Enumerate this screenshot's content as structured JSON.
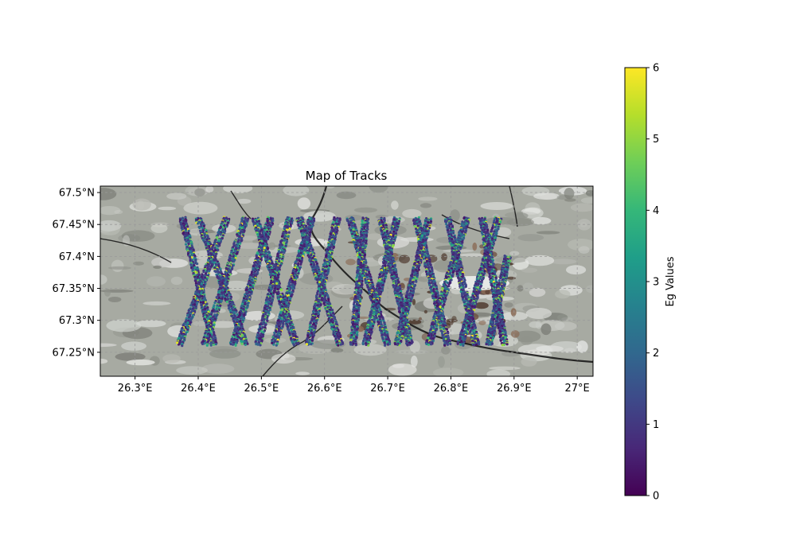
{
  "chart_data": {
    "type": "scatter",
    "title": "Map of Tracks",
    "xlim": [
      26.245,
      27.025
    ],
    "ylim": [
      67.2125,
      67.51
    ],
    "x_ticks": [
      {
        "value": 26.3,
        "label": "26.3°E"
      },
      {
        "value": 26.4,
        "label": "26.4°E"
      },
      {
        "value": 26.5,
        "label": "26.5°E"
      },
      {
        "value": 26.6,
        "label": "26.6°E"
      },
      {
        "value": 26.7,
        "label": "26.7°E"
      },
      {
        "value": 26.8,
        "label": "26.8°E"
      },
      {
        "value": 26.9,
        "label": "26.9°E"
      },
      {
        "value": 27.0,
        "label": "27°E"
      }
    ],
    "y_ticks": [
      {
        "value": 67.25,
        "label": "67.25°N"
      },
      {
        "value": 67.3,
        "label": "67.3°N"
      },
      {
        "value": 67.35,
        "label": "67.35°N"
      },
      {
        "value": 67.4,
        "label": "67.4°N"
      },
      {
        "value": 67.45,
        "label": "67.45°N"
      },
      {
        "value": 67.5,
        "label": "67.5°N"
      }
    ],
    "grid": true,
    "track_extent": {
      "lon": [
        26.37,
        26.89
      ],
      "lat": [
        67.262,
        67.46
      ]
    },
    "tracks": [
      {
        "lon_start": 26.375,
        "lat_start": 67.46,
        "lon_end": 26.425,
        "lat_end": 67.262
      },
      {
        "lon_start": 26.4,
        "lat_start": 67.46,
        "lon_end": 26.475,
        "lat_end": 67.262
      },
      {
        "lon_start": 26.445,
        "lat_start": 67.46,
        "lon_end": 26.37,
        "lat_end": 67.262
      },
      {
        "lon_start": 26.475,
        "lat_start": 67.46,
        "lon_end": 26.41,
        "lat_end": 67.262
      },
      {
        "lon_start": 26.49,
        "lat_start": 67.46,
        "lon_end": 26.555,
        "lat_end": 67.262
      },
      {
        "lon_start": 26.515,
        "lat_start": 67.46,
        "lon_end": 26.455,
        "lat_end": 67.262
      },
      {
        "lon_start": 26.545,
        "lat_start": 67.46,
        "lon_end": 26.495,
        "lat_end": 67.262
      },
      {
        "lon_start": 26.56,
        "lat_start": 67.46,
        "lon_end": 26.625,
        "lat_end": 67.262
      },
      {
        "lon_start": 26.58,
        "lat_start": 67.46,
        "lon_end": 26.52,
        "lat_end": 67.262
      },
      {
        "lon_start": 26.62,
        "lat_start": 67.46,
        "lon_end": 26.575,
        "lat_end": 67.262
      },
      {
        "lon_start": 26.64,
        "lat_start": 67.46,
        "lon_end": 26.7,
        "lat_end": 67.262
      },
      {
        "lon_start": 26.665,
        "lat_start": 67.46,
        "lon_end": 26.645,
        "lat_end": 67.262
      },
      {
        "lon_start": 26.69,
        "lat_start": 67.46,
        "lon_end": 26.735,
        "lat_end": 67.262
      },
      {
        "lon_start": 26.715,
        "lat_start": 67.46,
        "lon_end": 26.665,
        "lat_end": 67.262
      },
      {
        "lon_start": 26.745,
        "lat_start": 67.46,
        "lon_end": 26.795,
        "lat_end": 67.262
      },
      {
        "lon_start": 26.765,
        "lat_start": 67.46,
        "lon_end": 26.715,
        "lat_end": 67.262
      },
      {
        "lon_start": 26.795,
        "lat_start": 67.46,
        "lon_end": 26.84,
        "lat_end": 67.262
      },
      {
        "lon_start": 26.825,
        "lat_start": 67.46,
        "lon_end": 26.765,
        "lat_end": 67.262
      },
      {
        "lon_start": 26.85,
        "lat_start": 67.46,
        "lon_end": 26.885,
        "lat_end": 67.262
      },
      {
        "lon_start": 26.875,
        "lat_start": 67.46,
        "lon_end": 26.815,
        "lat_end": 67.262
      },
      {
        "lon_start": 26.89,
        "lat_start": 67.4,
        "lon_end": 26.86,
        "lat_end": 67.262
      }
    ],
    "colorbar": {
      "label": "Eg Values",
      "min": 0,
      "max": 6,
      "ticks": [
        {
          "value": 0,
          "label": "0"
        },
        {
          "value": 1,
          "label": "1"
        },
        {
          "value": 2,
          "label": "2"
        },
        {
          "value": 3,
          "label": "3"
        },
        {
          "value": 4,
          "label": "4"
        },
        {
          "value": 5,
          "label": "5"
        },
        {
          "value": 6,
          "label": "6"
        }
      ],
      "colormap": [
        "#440154",
        "#482878",
        "#3e4989",
        "#31688e",
        "#26828e",
        "#1f9e89",
        "#35b779",
        "#6ece58",
        "#b5de2b",
        "#fde725"
      ]
    },
    "colors": {
      "background_terrain": "#a7aaa2",
      "lake": "#e6e8e6",
      "river": "#101010"
    }
  }
}
